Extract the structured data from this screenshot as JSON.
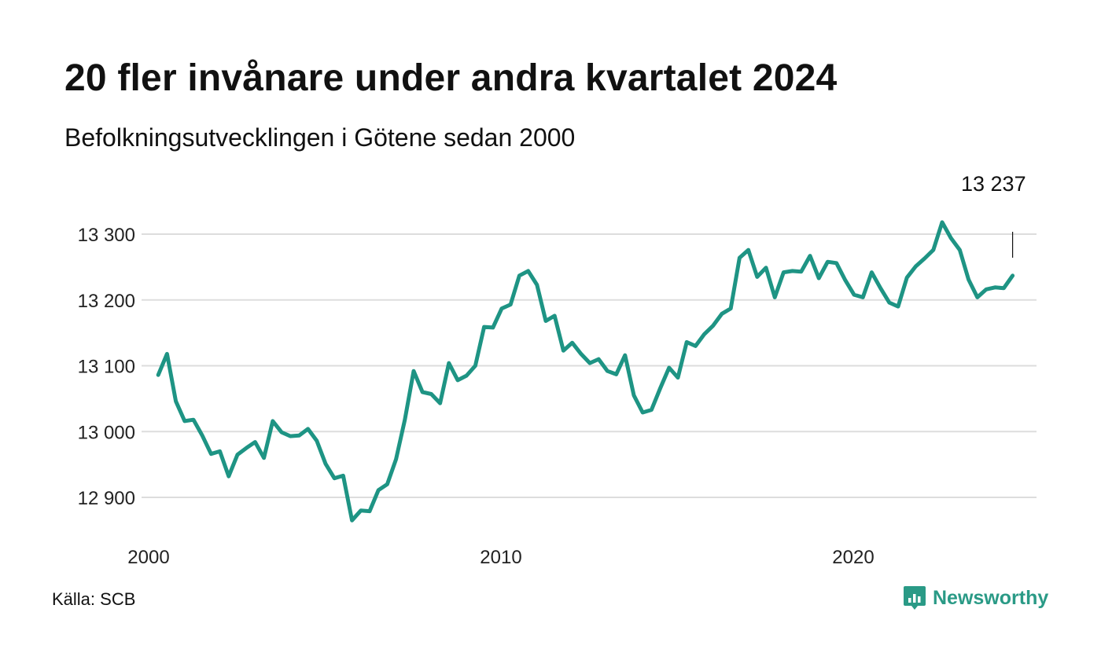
{
  "title": "20 fler invånare under andra kvartalet 2024",
  "subtitle": "Befolkningsutvecklingen i Götene sedan 2000",
  "source": "Källa: SCB",
  "brand": {
    "name": "Newsworthy",
    "icon": "newsworthy-logo-icon",
    "color": "#2a9a86"
  },
  "colors": {
    "line": "#1e9484",
    "grid": "#dddddd",
    "text": "#111111"
  },
  "chart_data": {
    "type": "line",
    "title": "20 fler invånare under andra kvartalet 2024",
    "subtitle": "Befolkningsutvecklingen i Götene sedan 2000",
    "xlabel": "",
    "ylabel": "",
    "grid": true,
    "x_range": [
      2000.0,
      2025.9
    ],
    "ylim": [
      12850,
      13340
    ],
    "x_ticks": [
      {
        "value": 2000,
        "label": "2000"
      },
      {
        "value": 2010,
        "label": "2010"
      },
      {
        "value": 2020,
        "label": "2020"
      }
    ],
    "y_ticks": [
      {
        "value": 12900,
        "label": "12 900"
      },
      {
        "value": 13000,
        "label": "13 000"
      },
      {
        "value": 13100,
        "label": "13 100"
      },
      {
        "value": 13200,
        "label": "13 200"
      },
      {
        "value": 13300,
        "label": "13 300"
      }
    ],
    "last_value_label": "13 237",
    "series": [
      {
        "points": [
          [
            2000.25,
            13086
          ],
          [
            2000.5,
            13118
          ],
          [
            2000.75,
            13046
          ],
          [
            2001.0,
            13016
          ],
          [
            2001.25,
            13018
          ],
          [
            2001.5,
            12994
          ],
          [
            2001.75,
            12966
          ],
          [
            2002.0,
            12970
          ],
          [
            2002.25,
            12932
          ],
          [
            2002.5,
            12965
          ],
          [
            2002.75,
            12975
          ],
          [
            2003.0,
            12984
          ],
          [
            2003.25,
            12960
          ],
          [
            2003.5,
            13016
          ],
          [
            2003.75,
            12999
          ],
          [
            2004.0,
            12993
          ],
          [
            2004.25,
            12994
          ],
          [
            2004.5,
            13004
          ],
          [
            2004.75,
            12986
          ],
          [
            2005.0,
            12951
          ],
          [
            2005.25,
            12929
          ],
          [
            2005.5,
            12933
          ],
          [
            2005.75,
            12865
          ],
          [
            2006.0,
            12880
          ],
          [
            2006.25,
            12879
          ],
          [
            2006.5,
            12911
          ],
          [
            2006.75,
            12920
          ],
          [
            2007.0,
            12958
          ],
          [
            2007.25,
            13018
          ],
          [
            2007.5,
            13092
          ],
          [
            2007.75,
            13060
          ],
          [
            2008.0,
            13057
          ],
          [
            2008.25,
            13043
          ],
          [
            2008.5,
            13104
          ],
          [
            2008.75,
            13078
          ],
          [
            2009.0,
            13085
          ],
          [
            2009.25,
            13100
          ],
          [
            2009.5,
            13159
          ],
          [
            2009.75,
            13158
          ],
          [
            2010.0,
            13187
          ],
          [
            2010.25,
            13193
          ],
          [
            2010.5,
            13237
          ],
          [
            2010.75,
            13244
          ],
          [
            2011.0,
            13223
          ],
          [
            2011.25,
            13168
          ],
          [
            2011.5,
            13176
          ],
          [
            2011.75,
            13123
          ],
          [
            2012.0,
            13135
          ],
          [
            2012.25,
            13118
          ],
          [
            2012.5,
            13104
          ],
          [
            2012.75,
            13110
          ],
          [
            2013.0,
            13092
          ],
          [
            2013.25,
            13087
          ],
          [
            2013.5,
            13116
          ],
          [
            2013.75,
            13055
          ],
          [
            2014.0,
            13029
          ],
          [
            2014.25,
            13033
          ],
          [
            2014.5,
            13066
          ],
          [
            2014.75,
            13097
          ],
          [
            2015.0,
            13082
          ],
          [
            2015.25,
            13136
          ],
          [
            2015.5,
            13130
          ],
          [
            2015.75,
            13148
          ],
          [
            2016.0,
            13161
          ],
          [
            2016.25,
            13179
          ],
          [
            2016.5,
            13187
          ],
          [
            2016.75,
            13264
          ],
          [
            2017.0,
            13276
          ],
          [
            2017.25,
            13235
          ],
          [
            2017.5,
            13249
          ],
          [
            2017.75,
            13204
          ],
          [
            2018.0,
            13242
          ],
          [
            2018.25,
            13244
          ],
          [
            2018.5,
            13243
          ],
          [
            2018.75,
            13267
          ],
          [
            2019.0,
            13233
          ],
          [
            2019.25,
            13258
          ],
          [
            2019.5,
            13256
          ],
          [
            2019.75,
            13230
          ],
          [
            2020.0,
            13208
          ],
          [
            2020.25,
            13204
          ],
          [
            2020.5,
            13242
          ],
          [
            2020.75,
            13218
          ],
          [
            2021.0,
            13196
          ],
          [
            2021.25,
            13190
          ],
          [
            2021.5,
            13234
          ],
          [
            2021.75,
            13251
          ],
          [
            2022.0,
            13263
          ],
          [
            2022.25,
            13276
          ],
          [
            2022.5,
            13318
          ],
          [
            2022.75,
            13294
          ],
          [
            2023.0,
            13276
          ],
          [
            2023.25,
            13231
          ],
          [
            2023.5,
            13204
          ],
          [
            2023.75,
            13216
          ],
          [
            2024.0,
            13219
          ],
          [
            2024.25,
            13218
          ],
          [
            2024.5,
            13237
          ]
        ]
      }
    ]
  }
}
